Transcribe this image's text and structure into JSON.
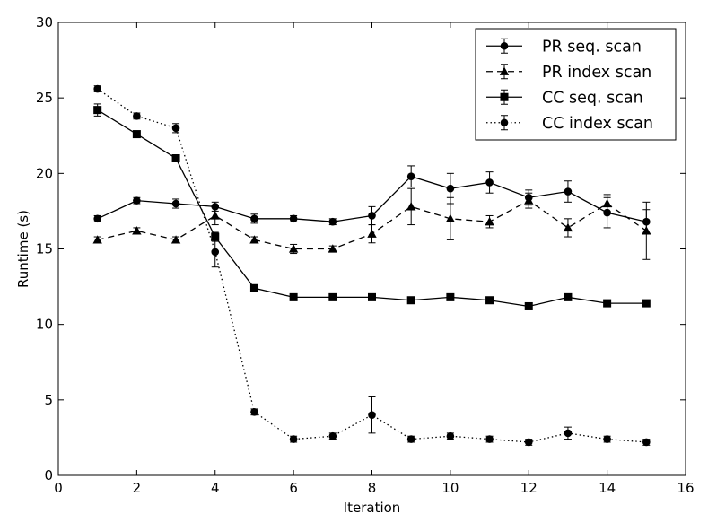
{
  "chart_data": {
    "type": "line",
    "title": "",
    "xlabel": "Iteration",
    "ylabel": "Runtime (s)",
    "xlim": [
      0,
      16
    ],
    "ylim": [
      0,
      30
    ],
    "xticks": [
      0,
      2,
      4,
      6,
      8,
      10,
      12,
      14,
      16
    ],
    "yticks": [
      0,
      5,
      10,
      15,
      20,
      25,
      30
    ],
    "grid": false,
    "legend_position": "top-right",
    "x": [
      1,
      2,
      3,
      4,
      5,
      6,
      7,
      8,
      9,
      10,
      11,
      12,
      13,
      14,
      15
    ],
    "series": [
      {
        "name": "PR seq. scan",
        "marker": "circle",
        "linestyle": "solid",
        "values": [
          17.0,
          18.2,
          18.0,
          17.8,
          17.0,
          17.0,
          16.8,
          17.2,
          19.8,
          19.0,
          19.4,
          18.4,
          18.8,
          17.4,
          16.8
        ],
        "errors": [
          0.2,
          0.2,
          0.3,
          0.3,
          0.3,
          0.2,
          0.2,
          0.6,
          0.7,
          1.0,
          0.7,
          0.5,
          0.7,
          1.0,
          0.8
        ]
      },
      {
        "name": "PR index scan",
        "marker": "triangle",
        "linestyle": "dashed",
        "values": [
          15.6,
          16.2,
          15.6,
          17.2,
          15.6,
          15.0,
          15.0,
          16.0,
          17.8,
          17.0,
          16.8,
          18.2,
          16.4,
          18.0,
          16.2
        ],
        "errors": [
          0.2,
          0.2,
          0.2,
          0.6,
          0.2,
          0.3,
          0.2,
          0.6,
          1.2,
          1.4,
          0.4,
          0.5,
          0.6,
          0.6,
          1.9
        ]
      },
      {
        "name": "CC seq. scan",
        "marker": "square",
        "linestyle": "solid",
        "values": [
          24.2,
          22.6,
          21.0,
          15.8,
          12.4,
          11.8,
          11.8,
          11.8,
          11.6,
          11.8,
          11.6,
          11.2,
          11.8,
          11.4,
          11.4
        ],
        "errors": [
          0.4,
          0.2,
          0.2,
          0.3,
          0.2,
          0.2,
          0.2,
          0.2,
          0.2,
          0.2,
          0.2,
          0.2,
          0.2,
          0.2,
          0.2
        ]
      },
      {
        "name": "CC index scan",
        "marker": "circle",
        "linestyle": "dotted",
        "values": [
          25.6,
          23.8,
          23.0,
          14.8,
          4.2,
          2.4,
          2.6,
          4.0,
          2.4,
          2.6,
          2.4,
          2.2,
          2.8,
          2.4,
          2.2
        ],
        "errors": [
          0.2,
          0.2,
          0.3,
          1.0,
          0.2,
          0.2,
          0.2,
          1.2,
          0.2,
          0.2,
          0.2,
          0.2,
          0.4,
          0.2,
          0.2
        ]
      }
    ]
  }
}
